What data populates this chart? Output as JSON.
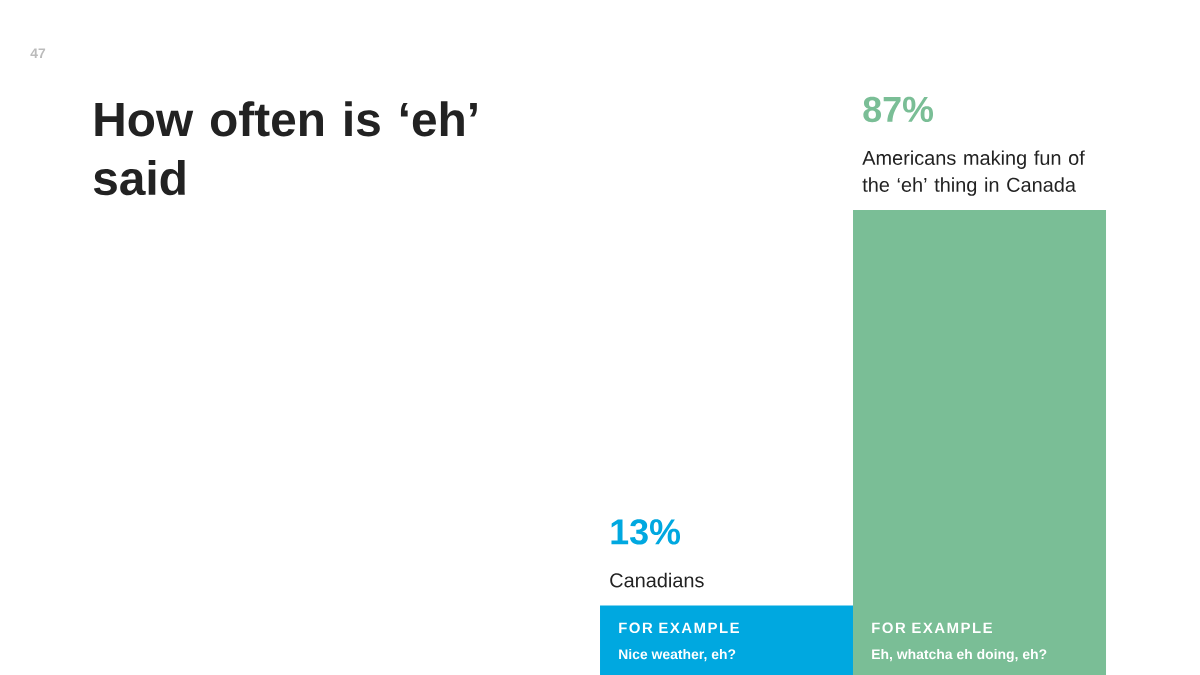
{
  "chart_data": {
    "type": "bar",
    "title": "How often is ‘eh’ said",
    "categories": [
      "Canadians",
      "Americans making fun of the ‘eh’ thing in Canada"
    ],
    "values": [
      13,
      87
    ],
    "value_labels": [
      "13%",
      "87%"
    ],
    "colors": [
      "#00a8e0",
      "#7abe96"
    ],
    "annotations": [
      "47",
      "FOR EXAMPLE",
      "Nice weather, eh?",
      "FOR EXAMPLE",
      "Eh, whatcha eh doing, eh?"
    ]
  }
}
